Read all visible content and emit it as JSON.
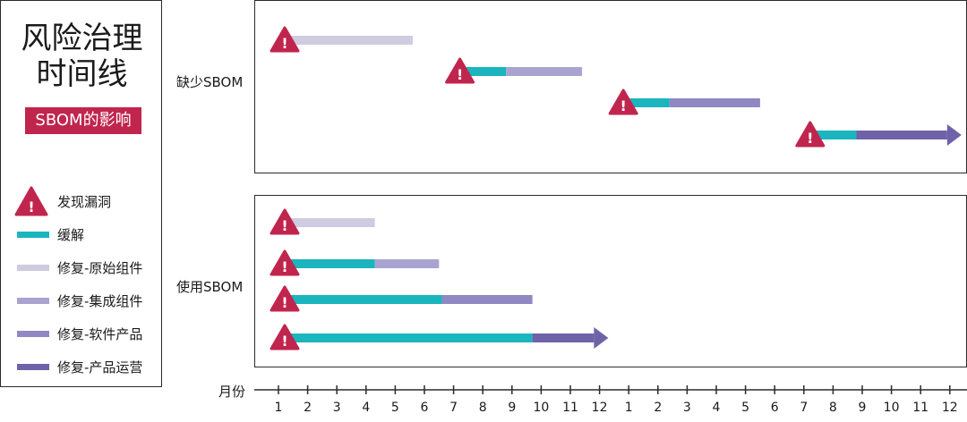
{
  "title_line1": "风险治理",
  "title_line2": "时间线",
  "subtitle": "SBOM的影响",
  "legend": [
    {
      "key": "discover",
      "label": "发现漏洞",
      "icon": "warning-triangle-icon",
      "color": "#c0254e"
    },
    {
      "key": "mitigate",
      "label": "缓解",
      "color": "#1ab5bd"
    },
    {
      "key": "fix_original",
      "label": "修复-原始组件",
      "color": "#cfcbe0"
    },
    {
      "key": "fix_integrated",
      "label": "修复-集成组件",
      "color": "#a9a3cf"
    },
    {
      "key": "fix_software",
      "label": "修复-软件产品",
      "color": "#8f88c2"
    },
    {
      "key": "fix_operations",
      "label": "修复-产品运营",
      "color": "#6f62a8"
    }
  ],
  "sections": [
    {
      "label": "缺少SBOM",
      "rows": [
        {
          "start": 1,
          "segments": [
            {
              "type": "fix_original",
              "end": 5.6
            }
          ]
        },
        {
          "start": 7,
          "segments": [
            {
              "type": "mitigate",
              "end": 8.8
            },
            {
              "type": "fix_integrated",
              "end": 11.4
            }
          ]
        },
        {
          "start": 12.6,
          "segments": [
            {
              "type": "mitigate",
              "end": 14.4
            },
            {
              "type": "fix_software",
              "end": 17.5
            }
          ]
        },
        {
          "start": 19,
          "segments": [
            {
              "type": "mitigate",
              "end": 20.8
            },
            {
              "type": "fix_operations",
              "end": 24.4,
              "arrow": true
            }
          ]
        }
      ]
    },
    {
      "label": "使用SBOM",
      "rows": [
        {
          "start": 1,
          "segments": [
            {
              "type": "fix_original",
              "end": 4.3
            }
          ]
        },
        {
          "start": 1,
          "segments": [
            {
              "type": "mitigate",
              "end": 4.3
            },
            {
              "type": "fix_integrated",
              "end": 6.5
            }
          ]
        },
        {
          "start": 1,
          "segments": [
            {
              "type": "mitigate",
              "end": 6.6
            },
            {
              "type": "fix_software",
              "end": 9.7
            }
          ]
        },
        {
          "start": 1,
          "segments": [
            {
              "type": "mitigate",
              "end": 9.7
            },
            {
              "type": "fix_operations",
              "end": 12.3,
              "arrow": true
            }
          ]
        }
      ]
    }
  ],
  "axis": {
    "label": "月份",
    "ticks": [
      "1",
      "2",
      "3",
      "4",
      "5",
      "6",
      "7",
      "8",
      "9",
      "10",
      "11",
      "12",
      "1",
      "2",
      "3",
      "4",
      "5",
      "6",
      "7",
      "8",
      "9",
      "10",
      "11",
      "12"
    ]
  },
  "warning_mark": "!"
}
